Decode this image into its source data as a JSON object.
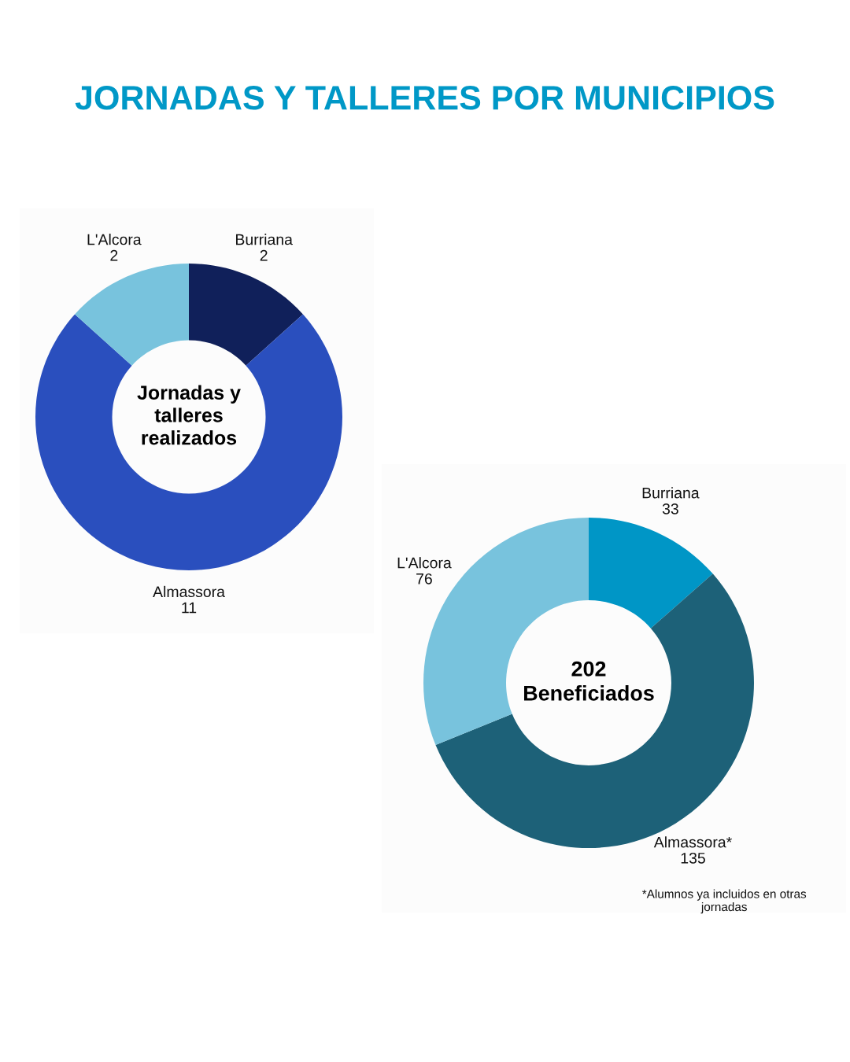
{
  "chart_data": [
    {
      "type": "donut",
      "title": "JORNADAS Y TALLERES POR MUNICIPIOS",
      "subtitle": "Jornadas y talleres realizados",
      "categories": [
        "Burriana",
        "Almassora",
        "L'Alcora"
      ],
      "values": [
        2,
        11,
        2
      ],
      "colors": [
        "#10205a",
        "#2a4fbe",
        "#78c3dd"
      ],
      "data_labels": true
    },
    {
      "type": "donut",
      "subtitle": "202 Beneficiados",
      "categories": [
        "Burriana",
        "Almassora*",
        "L'Alcora"
      ],
      "values": [
        33,
        135,
        76
      ],
      "colors": [
        "#0096c6",
        "#1d6178",
        "#78c3dd"
      ],
      "data_labels": true,
      "annotations": [
        "*Alumnos ya incluidos en otras jornadas"
      ]
    }
  ]
}
